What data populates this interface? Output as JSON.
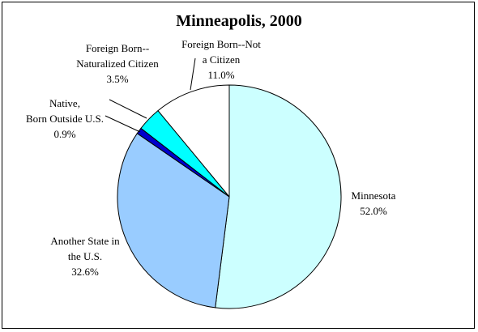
{
  "chart_data": {
    "type": "pie",
    "title": "Minneapolis, 2000",
    "slices": [
      {
        "label": "Minnesota",
        "value": 52.0,
        "value_label": "52.0%",
        "color": "#ccffff"
      },
      {
        "label": "Another State in the U.S.",
        "value": 32.6,
        "value_label": "32.6%",
        "color": "#99ccff"
      },
      {
        "label": "Native, Born Outside U.S.",
        "value": 0.9,
        "value_label": "0.9%",
        "color": "#0000cc"
      },
      {
        "label": "Foreign Born--Naturalized Citizen",
        "value": 3.5,
        "value_label": "3.5%",
        "color": "#00ffff"
      },
      {
        "label": "Foreign Born--Not a Citizen",
        "value": 11.0,
        "value_label": "11.0%",
        "color": "#ffffff"
      }
    ],
    "label_lines": [
      [
        "Minnesota"
      ],
      [
        "Another State in",
        "the U.S."
      ],
      [
        "Native,",
        "Born Outside U.S."
      ],
      [
        "Foreign Born--",
        "Naturalized Citizen"
      ],
      [
        "Foreign Born--Not",
        "a Citizen"
      ]
    ],
    "legend": false
  }
}
